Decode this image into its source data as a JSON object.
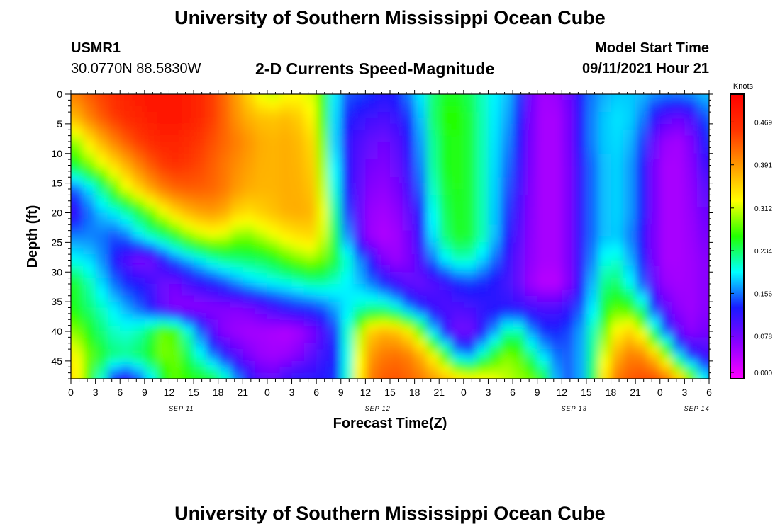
{
  "header": {
    "title": "University of Southern Mississippi Ocean Cube",
    "station_id": "USMR1",
    "coordinates": "30.0770N  88.5830W",
    "chart_heading": "2-D Currents Speed-Magnitude",
    "model_start_label": "Model Start Time",
    "model_start_value": "09/11/2021 Hour 21"
  },
  "footer": {
    "title": "University of Southern Mississippi Ocean Cube"
  },
  "colors": {
    "palette": [
      "#ff00ff",
      "#8c00ff",
      "#1a1aff",
      "#00ffff",
      "#22ff00",
      "#ffff00",
      "#ff9900",
      "#ff3300",
      "#ff0000"
    ]
  },
  "chart_data": {
    "type": "heatmap",
    "xlabel": "Forecast Time(Z)",
    "ylabel": "Depth (ft)",
    "x_tick_labels": [
      "0",
      "3",
      "6",
      "9",
      "12",
      "15",
      "18",
      "21",
      "0",
      "3",
      "6",
      "9",
      "12",
      "15",
      "18",
      "21",
      "0",
      "3",
      "6",
      "9",
      "12",
      "15",
      "18",
      "21",
      "0",
      "3",
      "6"
    ],
    "date_labels": [
      {
        "label": "SEP 11",
        "tick_index": 4.5
      },
      {
        "label": "SEP 12",
        "tick_index": 12.5
      },
      {
        "label": "SEP 13",
        "tick_index": 20.5
      },
      {
        "label": "SEP 14",
        "tick_index": 25.5
      }
    ],
    "xlim_hours": [
      0,
      78
    ],
    "y_tick_labels": [
      "0",
      "5",
      "10",
      "15",
      "20",
      "25",
      "30",
      "35",
      "40",
      "45"
    ],
    "ylim": [
      0,
      48
    ],
    "colorbar": {
      "unit": "Knots",
      "tick_labels": [
        "0.000",
        "0.078",
        "0.156",
        "0.234",
        "0.312",
        "0.391",
        "0.469"
      ],
      "range": [
        0,
        0.52
      ]
    },
    "x_hours": [
      0,
      3,
      6,
      9,
      12,
      15,
      18,
      21,
      24,
      27,
      30,
      33,
      36,
      39,
      42,
      45,
      48,
      51,
      54,
      57,
      60,
      63,
      66,
      69,
      72,
      75,
      78
    ],
    "y_depth": [
      0,
      4,
      8,
      12,
      16,
      20,
      24,
      28,
      32,
      36,
      40,
      44,
      48
    ],
    "values": [
      [
        0.4,
        0.44,
        0.47,
        0.49,
        0.5,
        0.48,
        0.44,
        0.37,
        0.3,
        0.33,
        0.31,
        0.15,
        0.14,
        0.12,
        0.17,
        0.25,
        0.25,
        0.2,
        0.17,
        0.05,
        0.06,
        0.15,
        0.18,
        0.18,
        0.16,
        0.16,
        0.18
      ],
      [
        0.36,
        0.42,
        0.46,
        0.48,
        0.5,
        0.48,
        0.44,
        0.38,
        0.36,
        0.37,
        0.32,
        0.14,
        0.11,
        0.1,
        0.15,
        0.26,
        0.26,
        0.2,
        0.16,
        0.05,
        0.05,
        0.15,
        0.19,
        0.18,
        0.1,
        0.08,
        0.16
      ],
      [
        0.28,
        0.36,
        0.42,
        0.46,
        0.48,
        0.46,
        0.43,
        0.4,
        0.37,
        0.38,
        0.34,
        0.13,
        0.09,
        0.08,
        0.14,
        0.25,
        0.26,
        0.2,
        0.15,
        0.05,
        0.05,
        0.15,
        0.19,
        0.17,
        0.06,
        0.05,
        0.14
      ],
      [
        0.24,
        0.3,
        0.36,
        0.42,
        0.46,
        0.45,
        0.42,
        0.39,
        0.37,
        0.38,
        0.35,
        0.14,
        0.08,
        0.07,
        0.13,
        0.25,
        0.26,
        0.2,
        0.14,
        0.05,
        0.05,
        0.14,
        0.19,
        0.16,
        0.05,
        0.05,
        0.12
      ],
      [
        0.14,
        0.2,
        0.3,
        0.37,
        0.42,
        0.43,
        0.42,
        0.38,
        0.37,
        0.38,
        0.36,
        0.15,
        0.07,
        0.06,
        0.12,
        0.24,
        0.26,
        0.2,
        0.13,
        0.05,
        0.05,
        0.14,
        0.19,
        0.16,
        0.05,
        0.05,
        0.1
      ],
      [
        0.1,
        0.17,
        0.2,
        0.26,
        0.34,
        0.38,
        0.39,
        0.34,
        0.36,
        0.38,
        0.37,
        0.17,
        0.06,
        0.05,
        0.1,
        0.23,
        0.26,
        0.2,
        0.12,
        0.05,
        0.05,
        0.14,
        0.19,
        0.16,
        0.05,
        0.05,
        0.09
      ],
      [
        0.16,
        0.16,
        0.14,
        0.2,
        0.24,
        0.3,
        0.32,
        0.28,
        0.31,
        0.34,
        0.35,
        0.2,
        0.06,
        0.04,
        0.09,
        0.22,
        0.26,
        0.2,
        0.11,
        0.05,
        0.05,
        0.14,
        0.19,
        0.15,
        0.05,
        0.05,
        0.08
      ],
      [
        0.2,
        0.18,
        0.11,
        0.06,
        0.14,
        0.18,
        0.22,
        0.23,
        0.24,
        0.28,
        0.3,
        0.23,
        0.14,
        0.05,
        0.08,
        0.18,
        0.22,
        0.17,
        0.1,
        0.05,
        0.05,
        0.14,
        0.22,
        0.16,
        0.05,
        0.05,
        0.07
      ],
      [
        0.26,
        0.2,
        0.14,
        0.12,
        0.07,
        0.11,
        0.13,
        0.17,
        0.19,
        0.2,
        0.22,
        0.2,
        0.17,
        0.12,
        0.08,
        0.1,
        0.14,
        0.13,
        0.1,
        0.04,
        0.04,
        0.15,
        0.25,
        0.18,
        0.06,
        0.05,
        0.07
      ],
      [
        0.26,
        0.22,
        0.18,
        0.14,
        0.07,
        0.06,
        0.07,
        0.07,
        0.1,
        0.13,
        0.14,
        0.18,
        0.22,
        0.22,
        0.14,
        0.1,
        0.1,
        0.12,
        0.12,
        0.1,
        0.1,
        0.16,
        0.28,
        0.26,
        0.1,
        0.05,
        0.07
      ],
      [
        0.3,
        0.24,
        0.2,
        0.22,
        0.3,
        0.18,
        0.07,
        0.05,
        0.05,
        0.04,
        0.08,
        0.16,
        0.35,
        0.38,
        0.32,
        0.14,
        0.06,
        0.14,
        0.24,
        0.14,
        0.13,
        0.18,
        0.32,
        0.36,
        0.18,
        0.06,
        0.08
      ],
      [
        0.34,
        0.26,
        0.22,
        0.24,
        0.3,
        0.22,
        0.14,
        0.08,
        0.05,
        0.06,
        0.1,
        0.14,
        0.38,
        0.42,
        0.4,
        0.3,
        0.14,
        0.24,
        0.3,
        0.2,
        0.14,
        0.18,
        0.36,
        0.42,
        0.34,
        0.14,
        0.1
      ],
      [
        0.36,
        0.24,
        0.1,
        0.16,
        0.28,
        0.26,
        0.24,
        0.14,
        0.08,
        0.12,
        0.12,
        0.14,
        0.4,
        0.44,
        0.42,
        0.38,
        0.34,
        0.33,
        0.3,
        0.28,
        0.14,
        0.18,
        0.4,
        0.44,
        0.44,
        0.34,
        0.16
      ]
    ]
  }
}
